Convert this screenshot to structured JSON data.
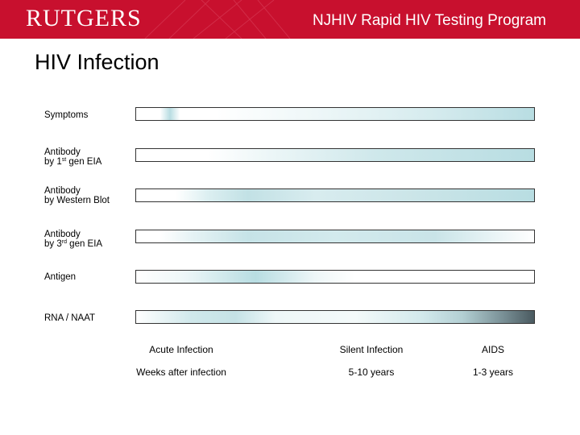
{
  "header": {
    "logo_text": "RUTGERS",
    "program_title": "NJHIV Rapid HIV Testing Program",
    "banner_color": "#c8102e"
  },
  "slide_title": "HIV Infection",
  "rows": [
    {
      "line1": "Symptoms",
      "line2": "",
      "sup": "",
      "line2_suffix": ""
    },
    {
      "line1": "Antibody",
      "line2": "by 1",
      "sup": "st",
      "line2_suffix": " gen EIA"
    },
    {
      "line1": "Antibody",
      "line2": "by Western Blot",
      "sup": "",
      "line2_suffix": ""
    },
    {
      "line1": "Antibody",
      "line2": "by 3",
      "sup": "rd",
      "line2_suffix": " gen EIA"
    },
    {
      "line1": "Antigen",
      "line2": "",
      "sup": "",
      "line2_suffix": ""
    },
    {
      "line1": "RNA / NAAT",
      "line2": "",
      "sup": "",
      "line2_suffix": ""
    }
  ],
  "phases": {
    "acute": {
      "label": "Acute Infection",
      "duration": "Weeks after infection"
    },
    "silent": {
      "label": "Silent Infection",
      "duration": "5-10 years"
    },
    "aids": {
      "label": "AIDS",
      "duration": "1-3 years"
    }
  },
  "colors": {
    "bar_tint": "#b8dde2",
    "rna_dark": "#4a5a60"
  }
}
